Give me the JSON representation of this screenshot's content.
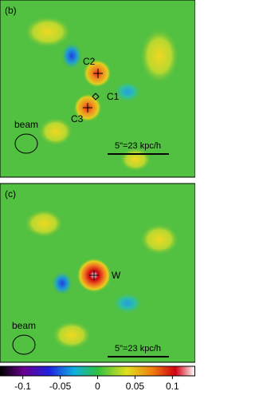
{
  "panels": [
    {
      "label": "(b)",
      "annotations": [
        "C2",
        "C1",
        "C3"
      ],
      "beam": "beam",
      "scale": "5\"=23 kpc/h"
    },
    {
      "label": "(c)",
      "annotations": [
        "W"
      ],
      "beam": "beam",
      "scale": "5\"=23 kpc/h"
    }
  ],
  "colorbar": {
    "lim": [
      -0.13,
      0.13
    ],
    "ticks": [
      -0.1,
      -0.05,
      0,
      0.05,
      0.1
    ]
  }
}
